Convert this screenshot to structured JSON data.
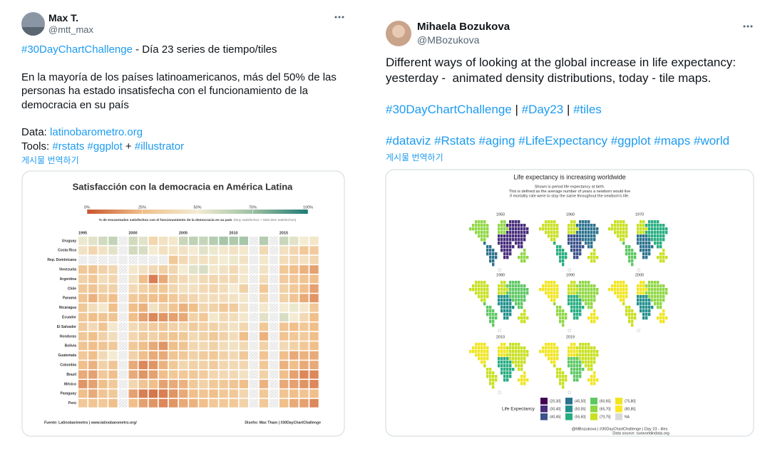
{
  "tweets": [
    {
      "name": "Max T.",
      "handle": "@mtt_max",
      "translate": "게시물 번역하기",
      "body": [
        [
          [
            {
              "text": "#30DayChartChallenge",
              "link": true
            },
            {
              "text": " - Día 23 series de tiempo/tiles"
            }
          ]
        ],
        [
          [
            {
              "text": "En la mayoría de los países latinoamericanos, más del 50% de las"
            }
          ],
          [
            {
              "text": "personas ha estado insatisfecha con el funcionamiento de la"
            }
          ],
          [
            {
              "text": "democracia en su país"
            }
          ]
        ],
        [
          [
            {
              "text": "Data: "
            },
            {
              "text": "latinobarometro.org",
              "link": true
            }
          ],
          [
            {
              "text": "Tools: "
            },
            {
              "text": "#rstats",
              "link": true
            },
            {
              "text": " "
            },
            {
              "text": "#ggplot",
              "link": true
            },
            {
              "text": " + "
            },
            {
              "text": "#illustrator",
              "link": true
            }
          ]
        ]
      ]
    },
    {
      "name": "Mihaela Bozukova",
      "handle": "@MBozukova",
      "translate": "게시물 번역하기",
      "body": [
        [
          [
            {
              "text": "Different ways of looking at the global increase in life expectancy:"
            }
          ],
          [
            {
              "text": "yesterday -  animated density distributions, today - tile maps."
            }
          ]
        ],
        [
          [
            {
              "text": "#30DayChartChallenge",
              "link": true
            },
            {
              "text": " | "
            },
            {
              "text": "#Day23",
              "link": true
            },
            {
              "text": " | "
            },
            {
              "text": "#tiles",
              "link": true
            }
          ]
        ],
        [
          [
            {
              "text": "#dataviz",
              "link": true
            },
            {
              "text": " "
            },
            {
              "text": "#Rstats",
              "link": true
            },
            {
              "text": " "
            },
            {
              "text": "#aging",
              "link": true
            },
            {
              "text": " "
            },
            {
              "text": "#LifeExpectancy",
              "link": true
            },
            {
              "text": " "
            },
            {
              "text": "#ggplot",
              "link": true
            },
            {
              "text": " "
            },
            {
              "text": "#maps",
              "link": true
            },
            {
              "text": " "
            },
            {
              "text": "#world",
              "link": true
            }
          ]
        ]
      ]
    }
  ],
  "heatmap": {
    "type": "heatmap",
    "title": "Satisfacción con la democracia en América Latina",
    "legend_ticks": [
      {
        "value": 0,
        "label": "0%"
      },
      {
        "value": 25,
        "label": "25%"
      },
      {
        "value": 50,
        "label": "50%"
      },
      {
        "value": 75,
        "label": "75%"
      },
      {
        "value": 100,
        "label": "100%"
      }
    ],
    "colors": [
      "#c9552e",
      "#f0bf8a",
      "#f3ebd2",
      "#9dc0a3",
      "#1e7b73"
    ],
    "caption": "% de encuestados satisfechos  con el funcionamiento de la democracia en su país",
    "caption_note": "(Muy satisfechos + Más bien satisfechos)",
    "xticks": [
      1995,
      2000,
      2005,
      2010,
      2015
    ],
    "countries": [
      "Uruguay",
      "Costa Rica",
      "Rep. Dominicana",
      "Venezuela",
      "Argentina",
      "Chile",
      "Panamá",
      "Nicaragua",
      "Ecuador",
      "El Salvador",
      "Honduras",
      "Bolivia",
      "Guatemala",
      "Colombia",
      "Brazil",
      "México",
      "Paraguay",
      "Perú"
    ],
    "values": [
      [
        52,
        55,
        60,
        64,
        null,
        60,
        55,
        38,
        45,
        48,
        62,
        65,
        63,
        68,
        72,
        70,
        72,
        null,
        68,
        null,
        62,
        55,
        50,
        47
      ],
      [
        45,
        38,
        45,
        55,
        null,
        60,
        58,
        50,
        44,
        46,
        45,
        50,
        55,
        52,
        48,
        45,
        48,
        null,
        40,
        null,
        44,
        38,
        30,
        32
      ],
      [
        null,
        null,
        null,
        null,
        null,
        null,
        null,
        null,
        null,
        30,
        40,
        45,
        44,
        46,
        50,
        52,
        45,
        null,
        48,
        null,
        42,
        40,
        44,
        38
      ],
      [
        30,
        28,
        35,
        38,
        null,
        48,
        45,
        40,
        35,
        38,
        50,
        55,
        58,
        48,
        45,
        40,
        48,
        null,
        45,
        null,
        30,
        25,
        22,
        18
      ],
      [
        35,
        30,
        42,
        38,
        null,
        45,
        25,
        10,
        20,
        35,
        40,
        45,
        40,
        38,
        40,
        40,
        48,
        null,
        42,
        null,
        32,
        30,
        28,
        25
      ],
      [
        30,
        28,
        35,
        35,
        null,
        40,
        35,
        30,
        30,
        38,
        44,
        44,
        40,
        38,
        42,
        50,
        35,
        null,
        30,
        null,
        35,
        30,
        25,
        18
      ],
      [
        28,
        22,
        30,
        25,
        null,
        30,
        28,
        25,
        25,
        30,
        35,
        38,
        42,
        42,
        42,
        45,
        48,
        null,
        38,
        null,
        35,
        28,
        20,
        15
      ],
      [
        30,
        42,
        48,
        25,
        null,
        25,
        22,
        45,
        35,
        28,
        22,
        25,
        38,
        35,
        30,
        32,
        45,
        null,
        48,
        null,
        50,
        52,
        48,
        30
      ],
      [
        30,
        25,
        28,
        28,
        null,
        25,
        18,
        12,
        15,
        18,
        20,
        35,
        30,
        48,
        40,
        42,
        48,
        null,
        55,
        null,
        58,
        50,
        40,
        25
      ],
      [
        32,
        40,
        28,
        48,
        null,
        40,
        35,
        32,
        30,
        35,
        38,
        32,
        35,
        35,
        40,
        45,
        38,
        null,
        30,
        null,
        28,
        25,
        30,
        25
      ],
      [
        30,
        25,
        35,
        42,
        null,
        38,
        32,
        35,
        30,
        28,
        30,
        40,
        35,
        30,
        35,
        42,
        25,
        null,
        22,
        null,
        28,
        30,
        32,
        25
      ],
      [
        28,
        25,
        28,
        30,
        null,
        30,
        25,
        20,
        15,
        25,
        28,
        38,
        40,
        35,
        42,
        45,
        40,
        null,
        35,
        null,
        40,
        35,
        30,
        25
      ],
      [
        30,
        25,
        40,
        50,
        null,
        35,
        25,
        20,
        20,
        28,
        30,
        35,
        32,
        30,
        35,
        40,
        30,
        null,
        28,
        null,
        25,
        20,
        22,
        20
      ],
      [
        25,
        22,
        35,
        28,
        null,
        20,
        12,
        15,
        22,
        30,
        38,
        35,
        35,
        32,
        38,
        40,
        38,
        null,
        30,
        null,
        22,
        25,
        20,
        20
      ],
      [
        20,
        18,
        30,
        25,
        null,
        20,
        15,
        18,
        25,
        30,
        30,
        30,
        32,
        38,
        40,
        40,
        45,
        null,
        35,
        null,
        25,
        18,
        12,
        12
      ],
      [
        15,
        18,
        25,
        30,
        null,
        38,
        28,
        25,
        18,
        20,
        22,
        30,
        35,
        30,
        30,
        28,
        25,
        null,
        22,
        null,
        20,
        18,
        15,
        12
      ],
      [
        25,
        20,
        28,
        30,
        null,
        18,
        10,
        8,
        10,
        15,
        20,
        25,
        28,
        25,
        30,
        30,
        38,
        null,
        30,
        null,
        28,
        25,
        28,
        25
      ],
      [
        30,
        28,
        30,
        25,
        null,
        25,
        18,
        15,
        12,
        15,
        20,
        22,
        25,
        30,
        30,
        30,
        35,
        null,
        30,
        null,
        25,
        20,
        18,
        12
      ]
    ],
    "footer_left": "Fuente: Latinobarómetro   |   www.latinobarometro.org/",
    "footer_right": "Diseño: Max Tham   |   #30DayChartChallenge"
  },
  "tilemap": {
    "type": "tilemap",
    "title": "Life expectancy is increasing worldwide",
    "subtitle": [
      "Shown is period life expectancy at birth.",
      "This is defined as the average number of years a newborn would live",
      "if mortality rate were to stay the same throughout the newborn's life."
    ],
    "legend_title": "Life Expectancy",
    "bins": [
      "(20,30]",
      "(30,40]",
      "(40,45]",
      "(45,50]",
      "(50,55]",
      "(55,60]",
      "(60,65]",
      "(65,70]",
      "(70,75]",
      "(75,80]",
      "(80,85]",
      "NA"
    ],
    "colors": [
      "#440154",
      "#472d7b",
      "#3b528b",
      "#2c728e",
      "#21908d",
      "#27ad81",
      "#5cc863",
      "#8fd744",
      "#c8e020",
      "#f0e51e",
      "#fde725",
      "#d9d9d9"
    ],
    "panels": [
      {
        "year": "1950",
        "levels": [
          7,
          3,
          7,
          1,
          1,
          7
        ]
      },
      {
        "year": "1960",
        "levels": [
          8,
          5,
          8,
          2,
          3,
          8
        ]
      },
      {
        "year": "1970",
        "levels": [
          8,
          6,
          8,
          3,
          5,
          8
        ]
      },
      {
        "year": "1980",
        "levels": [
          8,
          6,
          8,
          4,
          6,
          8
        ]
      },
      {
        "year": "1990",
        "levels": [
          9,
          7,
          8,
          5,
          7,
          9
        ]
      },
      {
        "year": "2000",
        "levels": [
          9,
          8,
          9,
          4,
          7,
          9
        ]
      },
      {
        "year": "2010",
        "levels": [
          9,
          8,
          9,
          5,
          8,
          9
        ]
      },
      {
        "year": "2019",
        "levels": [
          9,
          8,
          9,
          6,
          8,
          9
        ]
      }
    ],
    "footer": [
      "@MBozukova | #30DayChartChallenge | Day 23 - tiles",
      "Data source: ourworldindata.org"
    ]
  }
}
